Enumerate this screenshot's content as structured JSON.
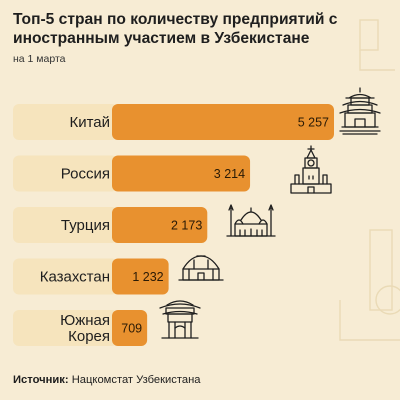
{
  "title": "Топ-5 стран по количеству предприятий с иностранным участием в Узбекистане",
  "subtitle": "на 1 марта",
  "source": {
    "label": "Источник:",
    "text": "Нацкомстат Узбекистана"
  },
  "colors": {
    "background": "#f7ecd4",
    "bar": "#e8912f",
    "label_box": "#f6e4bd"
  },
  "chart_data": {
    "type": "bar",
    "orientation": "horizontal",
    "title": "Топ-5 стран по количеству предприятий с иностранным участием в Узбекистане",
    "subtitle": "на 1 марта",
    "categories": [
      {
        "lines": [
          "Китай"
        ],
        "icon": "pagoda-icon"
      },
      {
        "lines": [
          "Россия"
        ],
        "icon": "kremlin-tower-icon"
      },
      {
        "lines": [
          "Турция"
        ],
        "icon": "mosque-icon"
      },
      {
        "lines": [
          "Казахстан"
        ],
        "icon": "yurt-icon"
      },
      {
        "lines": [
          "Южная",
          "Корея"
        ],
        "icon": "korean-gate-icon"
      }
    ],
    "values": [
      5257,
      3214,
      2173,
      1232,
      709
    ],
    "value_labels": [
      "5 257",
      "3 214",
      "2 173",
      "1 232",
      "709"
    ],
    "xlim": [
      0,
      5257
    ],
    "grid": false,
    "legend": "none"
  }
}
